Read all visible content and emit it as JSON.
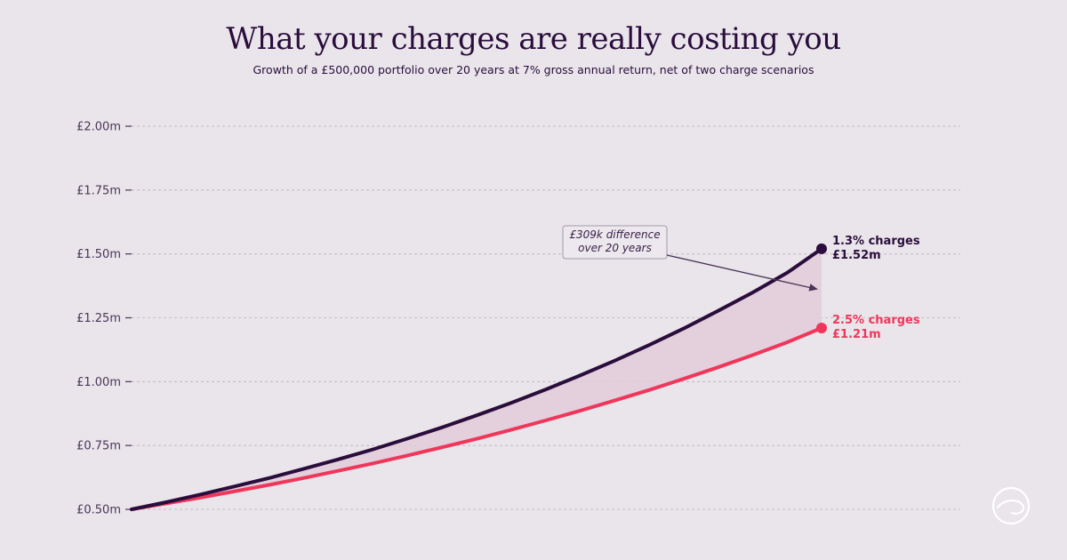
{
  "page": {
    "background": "#e9e5ea",
    "title": "What your charges are really costing you",
    "subtitle": "Growth of a £500,000 portfolio over 20 years at 7% gross annual return, net of two charge scenarios",
    "logo_icon": "brand-circle-logo-icon"
  },
  "chart_data": {
    "type": "line",
    "title": "What your charges are really costing you",
    "subtitle": "Growth of a £500,000 portfolio over 20 years at 7% gross annual return, net of two charge scenarios",
    "xlabel": "",
    "ylabel": "",
    "x": [
      0,
      1,
      2,
      3,
      4,
      5,
      6,
      7,
      8,
      9,
      10,
      11,
      12,
      13,
      14,
      15,
      16,
      17,
      18,
      19,
      20
    ],
    "xlim": [
      0,
      20
    ],
    "ylim": [
      0.5,
      2.0
    ],
    "yticks": [
      0.5,
      0.75,
      1.0,
      1.25,
      1.5,
      1.75,
      2.0
    ],
    "ytick_labels": [
      "£0.50m",
      "£0.75m",
      "£1.00m",
      "£1.25m",
      "£1.50m",
      "£1.75m",
      "£2.00m"
    ],
    "grid": true,
    "series": [
      {
        "name": "1.3% charges",
        "color": "#2a0d3c",
        "values": [
          0.5,
          0.528,
          0.558,
          0.59,
          0.623,
          0.659,
          0.696,
          0.735,
          0.777,
          0.821,
          0.868,
          0.917,
          0.969,
          1.024,
          1.082,
          1.143,
          1.208,
          1.277,
          1.349,
          1.426,
          1.52
        ],
        "end_label_name": "1.3% charges",
        "end_label_value": "£1.52m"
      },
      {
        "name": "2.5% charges",
        "color": "#f0365a",
        "values": [
          0.5,
          0.523,
          0.546,
          0.571,
          0.596,
          0.623,
          0.651,
          0.68,
          0.711,
          0.743,
          0.776,
          0.811,
          0.848,
          0.886,
          0.926,
          0.967,
          1.011,
          1.056,
          1.104,
          1.154,
          1.21
        ],
        "end_label_name": "2.5% charges",
        "end_label_value": "£1.21m"
      }
    ],
    "shaded_gap_color": "#e2ccd9",
    "annotation": {
      "line1": "£309k difference",
      "line2": "over 20 years"
    }
  }
}
